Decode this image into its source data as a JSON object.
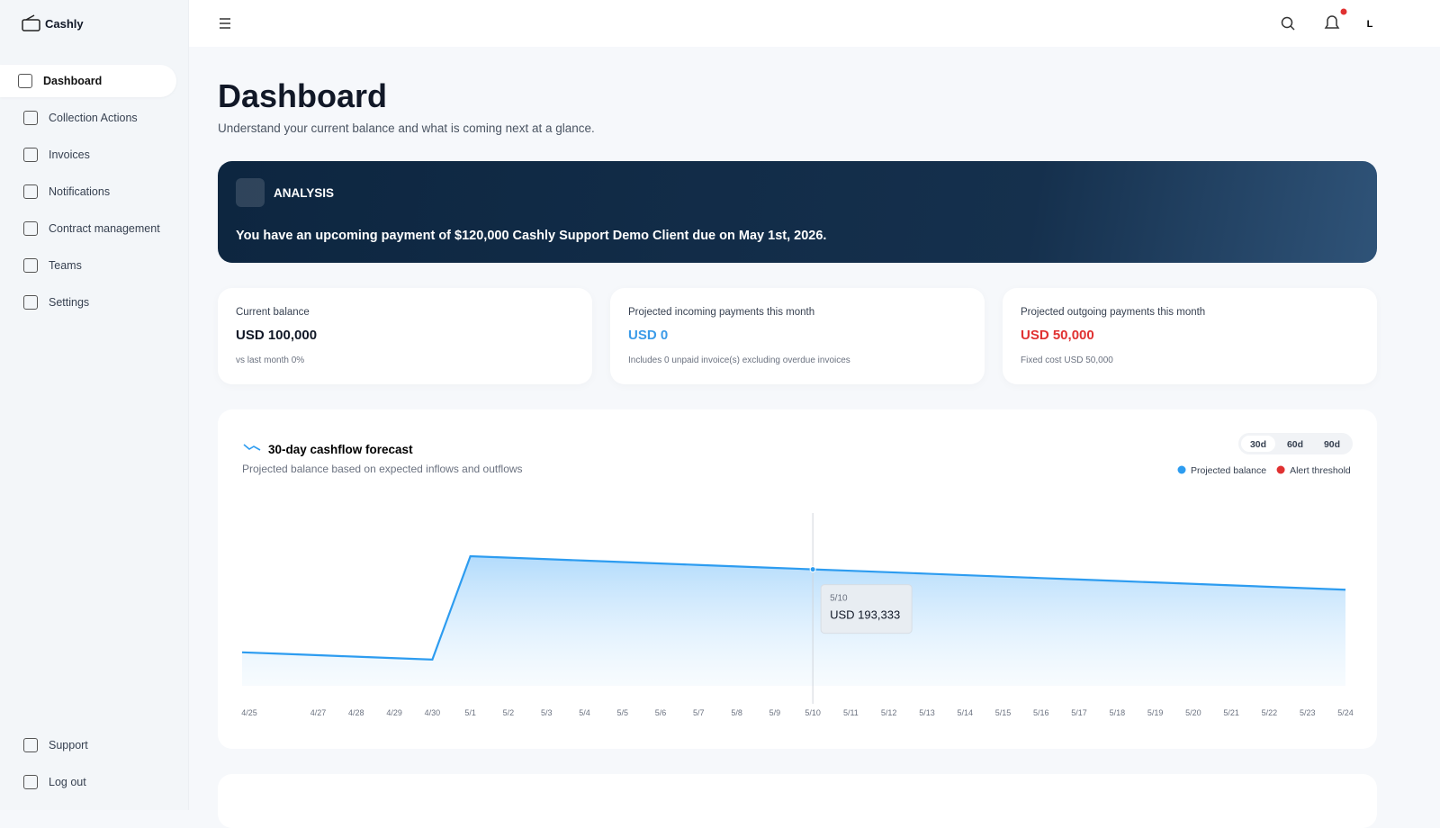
{
  "brand": "Cashly",
  "active_nav": "Dashboard",
  "nav": [
    "Dashboard",
    "Collection Actions",
    "Invoices",
    "Notifications",
    "Contract management",
    "Teams",
    "Settings"
  ],
  "footer_nav": [
    "Support",
    "Log out"
  ],
  "header": {
    "avatar": "L"
  },
  "page": {
    "title": "Dashboard",
    "subtitle": "Understand your current balance and what is coming next at a glance."
  },
  "analysis": {
    "title": "ANALYSIS",
    "message": "You have an upcoming payment of $120,000 Cashly Support Demo Client due on May 1st, 2026."
  },
  "cards": [
    {
      "label": "Current balance",
      "value": "USD 100,000",
      "color": "#111827",
      "note": "vs last month 0%"
    },
    {
      "label": "Projected incoming payments this month",
      "value": "USD 0",
      "color": "#3b9be8",
      "note": "Includes 0 unpaid invoice(s) excluding overdue invoices"
    },
    {
      "label": "Projected outgoing payments this month",
      "value": "USD 50,000",
      "color": "#e03131",
      "note": "Fixed cost USD 50,000"
    }
  ],
  "chart_data": {
    "type": "area",
    "title": "30-day cashflow forecast",
    "subtitle": "Projected balance based on expected inflows and outflows",
    "range_options": [
      "30d",
      "60d",
      "90d"
    ],
    "selected_range": "30d",
    "categories": [
      "4/25",
      null,
      "4/27",
      "4/28",
      "4/29",
      "4/30",
      "5/1",
      "5/2",
      "5/3",
      "5/4",
      "5/5",
      "5/6",
      "5/7",
      "5/8",
      "5/9",
      "5/10",
      "5/11",
      "5/12",
      "5/13",
      "5/14",
      "5/15",
      "5/16",
      "5/17",
      "5/18",
      "5/19",
      "5/20",
      "5/21",
      "5/22",
      "5/23",
      "5/24"
    ],
    "series": [
      {
        "name": "Projected balance",
        "color": "#2d9cf0",
        "values": [
          98333,
          96667,
          95000,
          93333,
          91667,
          90000,
          208333,
          206667,
          205000,
          203333,
          201667,
          200000,
          198333,
          196667,
          195000,
          193333,
          191667,
          190000,
          188333,
          186667,
          185000,
          183333,
          181667,
          180000,
          178333,
          176667,
          175000,
          173333,
          171667,
          170000
        ]
      }
    ],
    "alert_threshold": {
      "name": "Alert threshold",
      "color": "#e03131"
    },
    "ylim": [
      60000,
      230000
    ],
    "tooltip": {
      "label": "5/10",
      "value": "USD 193,333"
    }
  }
}
